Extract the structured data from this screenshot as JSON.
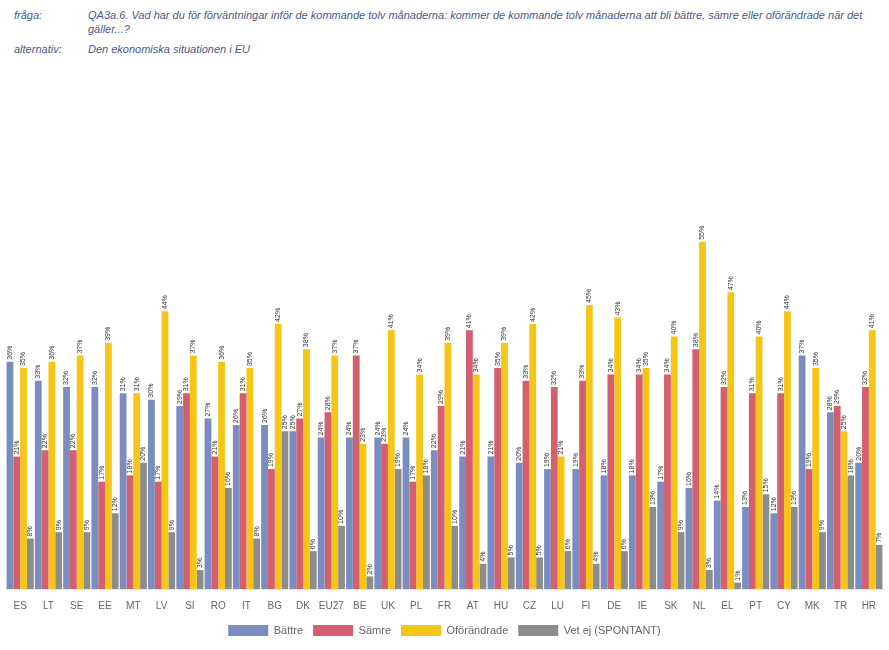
{
  "chart_data": {
    "type": "bar",
    "title": "QA3a.6. Vad har du för förväntningar inför de kommande tolv månaderna: kommer de kommande tolv månaderna att bli bättre, sämre eller oförändrade när det gäller...?",
    "subtitle": "Den ekonomiska situationen i EU",
    "annotations": [
      "fråga:",
      "alternativ:"
    ],
    "categories": [
      "ES",
      "LT",
      "SE",
      "EE",
      "MT",
      "LV",
      "SI",
      "RO",
      "IT",
      "BG",
      "DK",
      "EU27",
      "BE",
      "UK",
      "PL",
      "FR",
      "AT",
      "HU",
      "CZ",
      "LU",
      "FI",
      "DE",
      "IE",
      "SK",
      "NL",
      "EL",
      "PT",
      "CY",
      "MK",
      "TR",
      "HR"
    ],
    "series": [
      {
        "name": "Bättre",
        "color": "#7b8cbf",
        "values": [
          36,
          33,
          32,
          32,
          31,
          30,
          29,
          27,
          26,
          26,
          25,
          24,
          24,
          24,
          24,
          22,
          21,
          21,
          20,
          19,
          19,
          18,
          18,
          17,
          16,
          14,
          13,
          12,
          37,
          28,
          20
        ],
        "value_labels": [
          "36%",
          "33%",
          "32%",
          "32%",
          "31%",
          "30%",
          "29%",
          "27%",
          "26%",
          "26%",
          "25%",
          "24%",
          "24%",
          "24%",
          "24%",
          "22%",
          "21%",
          "21%",
          "20%",
          "19%",
          "19%",
          "18%",
          "18%",
          "17%",
          "16%",
          "14%",
          "13%",
          "12%",
          "37%",
          "28%",
          "20%"
        ]
      },
      {
        "name": "Sämre",
        "color": "#d45f6e",
        "values": [
          21,
          22,
          22,
          17,
          18,
          17,
          31,
          21,
          31,
          19,
          27,
          28,
          37,
          23,
          17,
          29,
          41,
          35,
          33,
          32,
          33,
          34,
          34,
          34,
          38,
          32,
          31,
          31,
          19,
          29,
          32
        ],
        "value_labels": [
          "21%",
          "22%",
          "22%",
          "17%",
          "18%",
          "17%",
          "31%",
          "21%",
          "31%",
          "19%",
          "27%",
          "28%",
          "37%",
          "23%",
          "17%",
          "29%",
          "41%",
          "35%",
          "33%",
          "32%",
          "33%",
          "34%",
          "34%",
          "34%",
          "38%",
          "32%",
          "31%",
          "31%",
          "19%",
          "29%",
          "32%"
        ]
      },
      {
        "name": "Oförändrade",
        "color": "#f5c518",
        "values": [
          35,
          36,
          37,
          39,
          31,
          44,
          37,
          36,
          35,
          42,
          38,
          37,
          23,
          41,
          34,
          39,
          34,
          39,
          42,
          21,
          45,
          43,
          35,
          40,
          55,
          47,
          40,
          44,
          35,
          25,
          41
        ],
        "value_labels": [
          "35%",
          "36%",
          "37%",
          "39%",
          "31%",
          "44%",
          "37%",
          "36%",
          "35%",
          "42%",
          "38%",
          "37%",
          "23%",
          "41%",
          "34%",
          "39%",
          "34%",
          "39%",
          "42%",
          "21%",
          "45%",
          "43%",
          "35%",
          "40%",
          "55%",
          "47%",
          "40%",
          "44%",
          "35%",
          "25%",
          "41%"
        ]
      },
      {
        "name": "Vet ej (SPONTANT)",
        "color": "#8c8c8c",
        "values": [
          8,
          9,
          9,
          12,
          20,
          9,
          3,
          16,
          8,
          25,
          6,
          10,
          2,
          19,
          18,
          10,
          4,
          5,
          5,
          6,
          4,
          6,
          13,
          9,
          3,
          1,
          15,
          13,
          9,
          18,
          7
        ],
        "value_labels": [
          "8%",
          "9%",
          "9%",
          "12%",
          "20%",
          "9%",
          "3%",
          "16%",
          "8%",
          "25%",
          "6%",
          "10%",
          "2%",
          "19%",
          "18%",
          "10%",
          "4%",
          "5%",
          "5%",
          "6%",
          "4%",
          "6%",
          "13%",
          "9%",
          "3%",
          "1%",
          "15%",
          "13%",
          "9%",
          "18%",
          "7%"
        ]
      }
    ],
    "ylim": [
      0,
      80
    ],
    "tick_labels": "x",
    "grid": false,
    "legend": "bottom",
    "data_labels": true
  }
}
